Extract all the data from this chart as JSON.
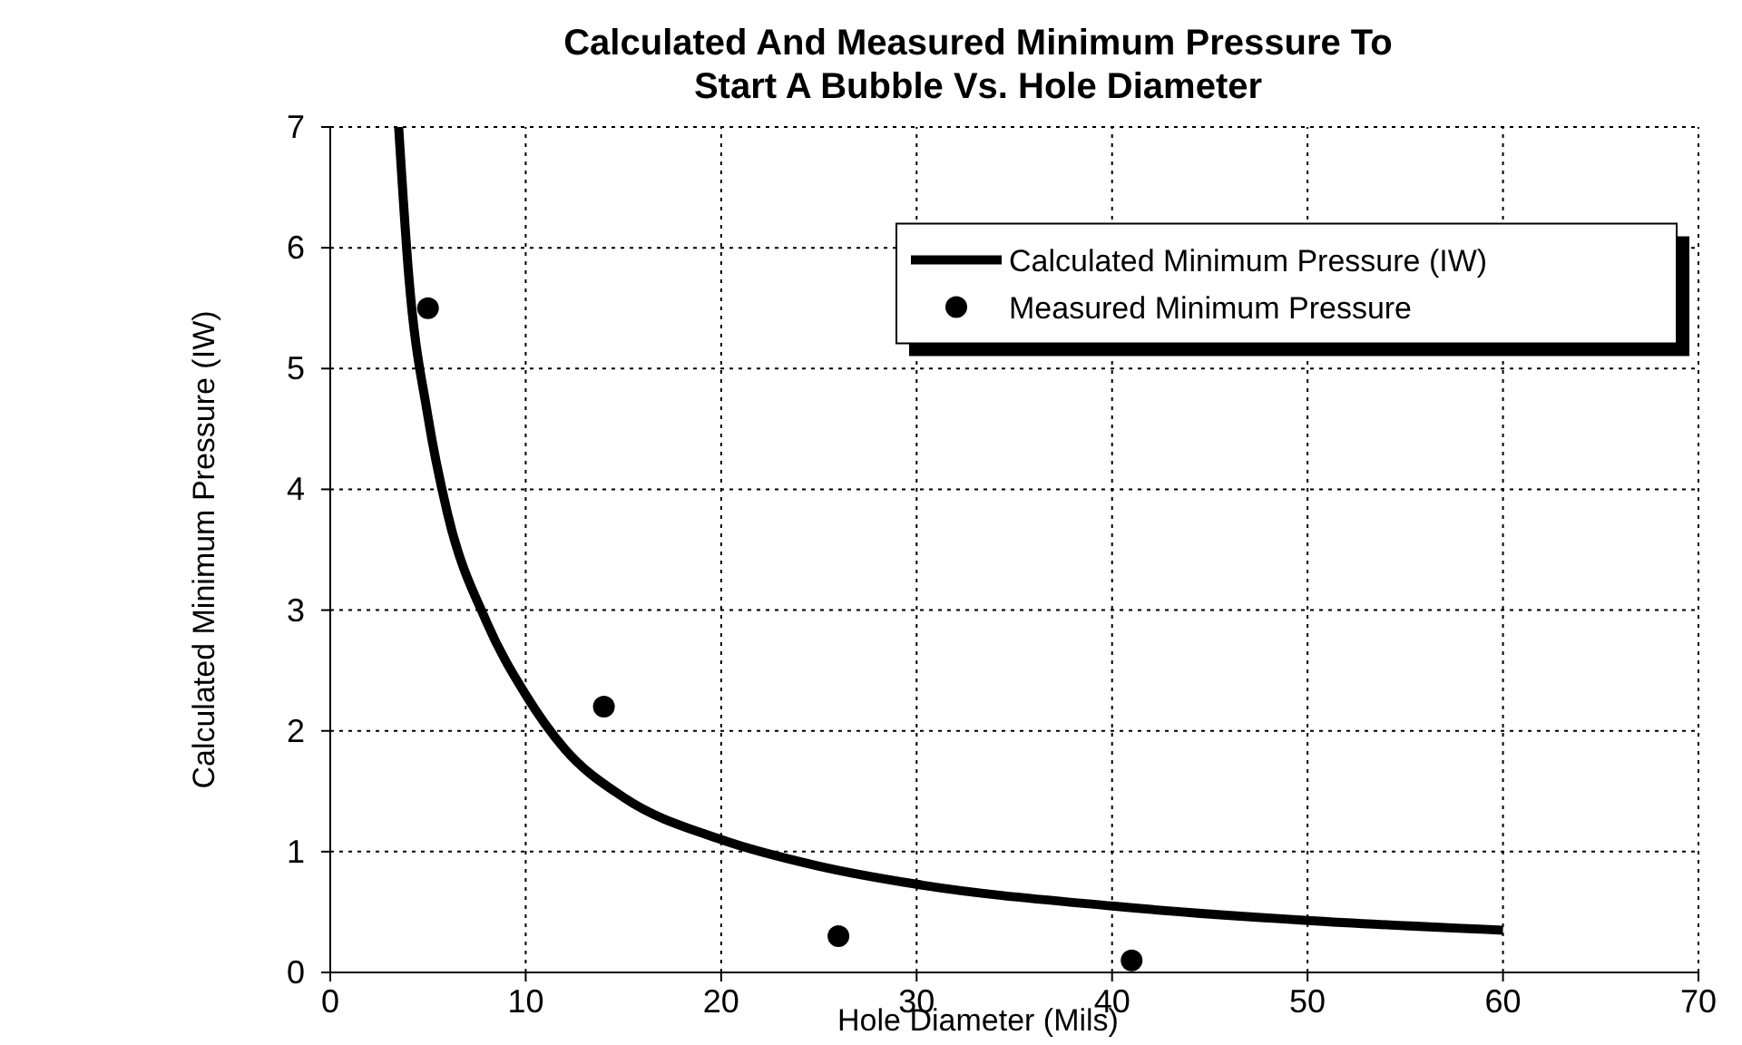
{
  "chart_data": {
    "type": "line",
    "title": "Calculated And Measured Minimum Pressure To Start A Bubble Vs. Hole Diameter",
    "xlabel": "Hole Diameter (Mils)",
    "ylabel": "Calculated Minimum Pressure (IW)",
    "xlim": [
      0,
      70
    ],
    "ylim": [
      0,
      7
    ],
    "xticks": [
      0,
      10,
      20,
      30,
      40,
      50,
      60,
      70
    ],
    "yticks": [
      0,
      1,
      2,
      3,
      4,
      5,
      6,
      7
    ],
    "grid": true,
    "legend": "top right",
    "series": [
      {
        "name": "Calculated Minimum Pressure (IW)",
        "color": "#000000",
        "marker": "none",
        "line_style": "solid",
        "x": [
          3.5,
          4,
          5,
          6,
          8,
          10,
          12,
          15,
          20,
          25,
          30,
          40,
          50,
          60
        ],
        "values": [
          7,
          5.8,
          4.6,
          3.8,
          2.9,
          2.3,
          1.85,
          1.45,
          1.1,
          0.88,
          0.73,
          0.55,
          0.43,
          0.35
        ]
      },
      {
        "name": "Measured Minimum Pressure",
        "type": "scatter",
        "color": "#000000",
        "marker": "circle",
        "x": [
          5,
          14,
          26,
          41
        ],
        "values": [
          5.5,
          2.2,
          0.3,
          0.1
        ]
      }
    ]
  }
}
